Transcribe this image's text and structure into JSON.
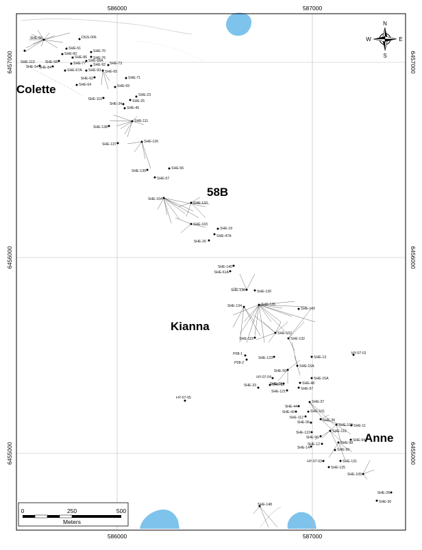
{
  "map": {
    "easting_ticks": [
      "586000",
      "587000"
    ],
    "northing_ticks": [
      "6457000",
      "6456000",
      "6455000"
    ],
    "zones": [
      "Colette",
      "58B",
      "Kianna",
      "Anne"
    ],
    "north_arrow": {
      "n": "N",
      "s": "S",
      "e": "E",
      "w": "W"
    },
    "scale_bar": {
      "ticks": [
        "0",
        "250",
        "500"
      ],
      "unit": "Meters"
    },
    "colors": {
      "water": "#7ec3ec",
      "frame": "#000000",
      "grid": "#b9b9b9",
      "drill_trace": "#555555"
    },
    "drillholes": [
      "SHE-66",
      "DGS-006",
      "SHE-51",
      "SHE-60",
      "SHE-70",
      "SHE-76",
      "SHE-86",
      "SHE-68A",
      "SHE-58",
      "SHE-77",
      "SHE-113",
      "SHE-54",
      "SHE-84",
      "SHE-92",
      "SHE-73",
      "SHE-67A",
      "SHE-93",
      "SHE-65",
      "SHE-62",
      "SHE-71",
      "SHE-64",
      "SHE-69",
      "SHE-23",
      "SHE-110",
      "SHE-25",
      "SHE-34",
      "SHE-45",
      "SHE-111",
      "SHE-138",
      "SHE-137",
      "SHE-126",
      "SHE-139",
      "SHE-56",
      "SHE-57",
      "SHE-104",
      "SHE-133",
      "SHE-103",
      "SHE-19",
      "SHE-47A",
      "SHE-26",
      "SHE-140",
      "SHE-61A",
      "SHE-136",
      "SHE-130",
      "SHE-135",
      "SHE-134",
      "SHE-142",
      "SHE-102",
      "SHE-115",
      "SHE-132",
      "SHE-13",
      "HY-07-01",
      "P08-1",
      "P08-2",
      "SHE-123",
      "SHE-15A",
      "SHE-50",
      "HY-07-04",
      "SHE-15A",
      "SHE-48",
      "SHE-38",
      "SHE-33",
      "SHE-32",
      "SHE-97",
      "SHE-121",
      "HY-07-05",
      "SHE-37",
      "SHE-44",
      "SHE-42",
      "SHE-101",
      "SHE-112",
      "SHE-36",
      "SHE-109",
      "SHE-11",
      "SHE-95",
      "SHE-110",
      "SHE-122",
      "SHE-96",
      "SHE-94",
      "SHE-12",
      "SHE-14",
      "SHE-98",
      "SHE-99",
      "SHE-131",
      "HY-07-03",
      "SHE-125",
      "SHE-105",
      "SHE-28",
      "SHE-30",
      "SHE-148"
    ]
  }
}
